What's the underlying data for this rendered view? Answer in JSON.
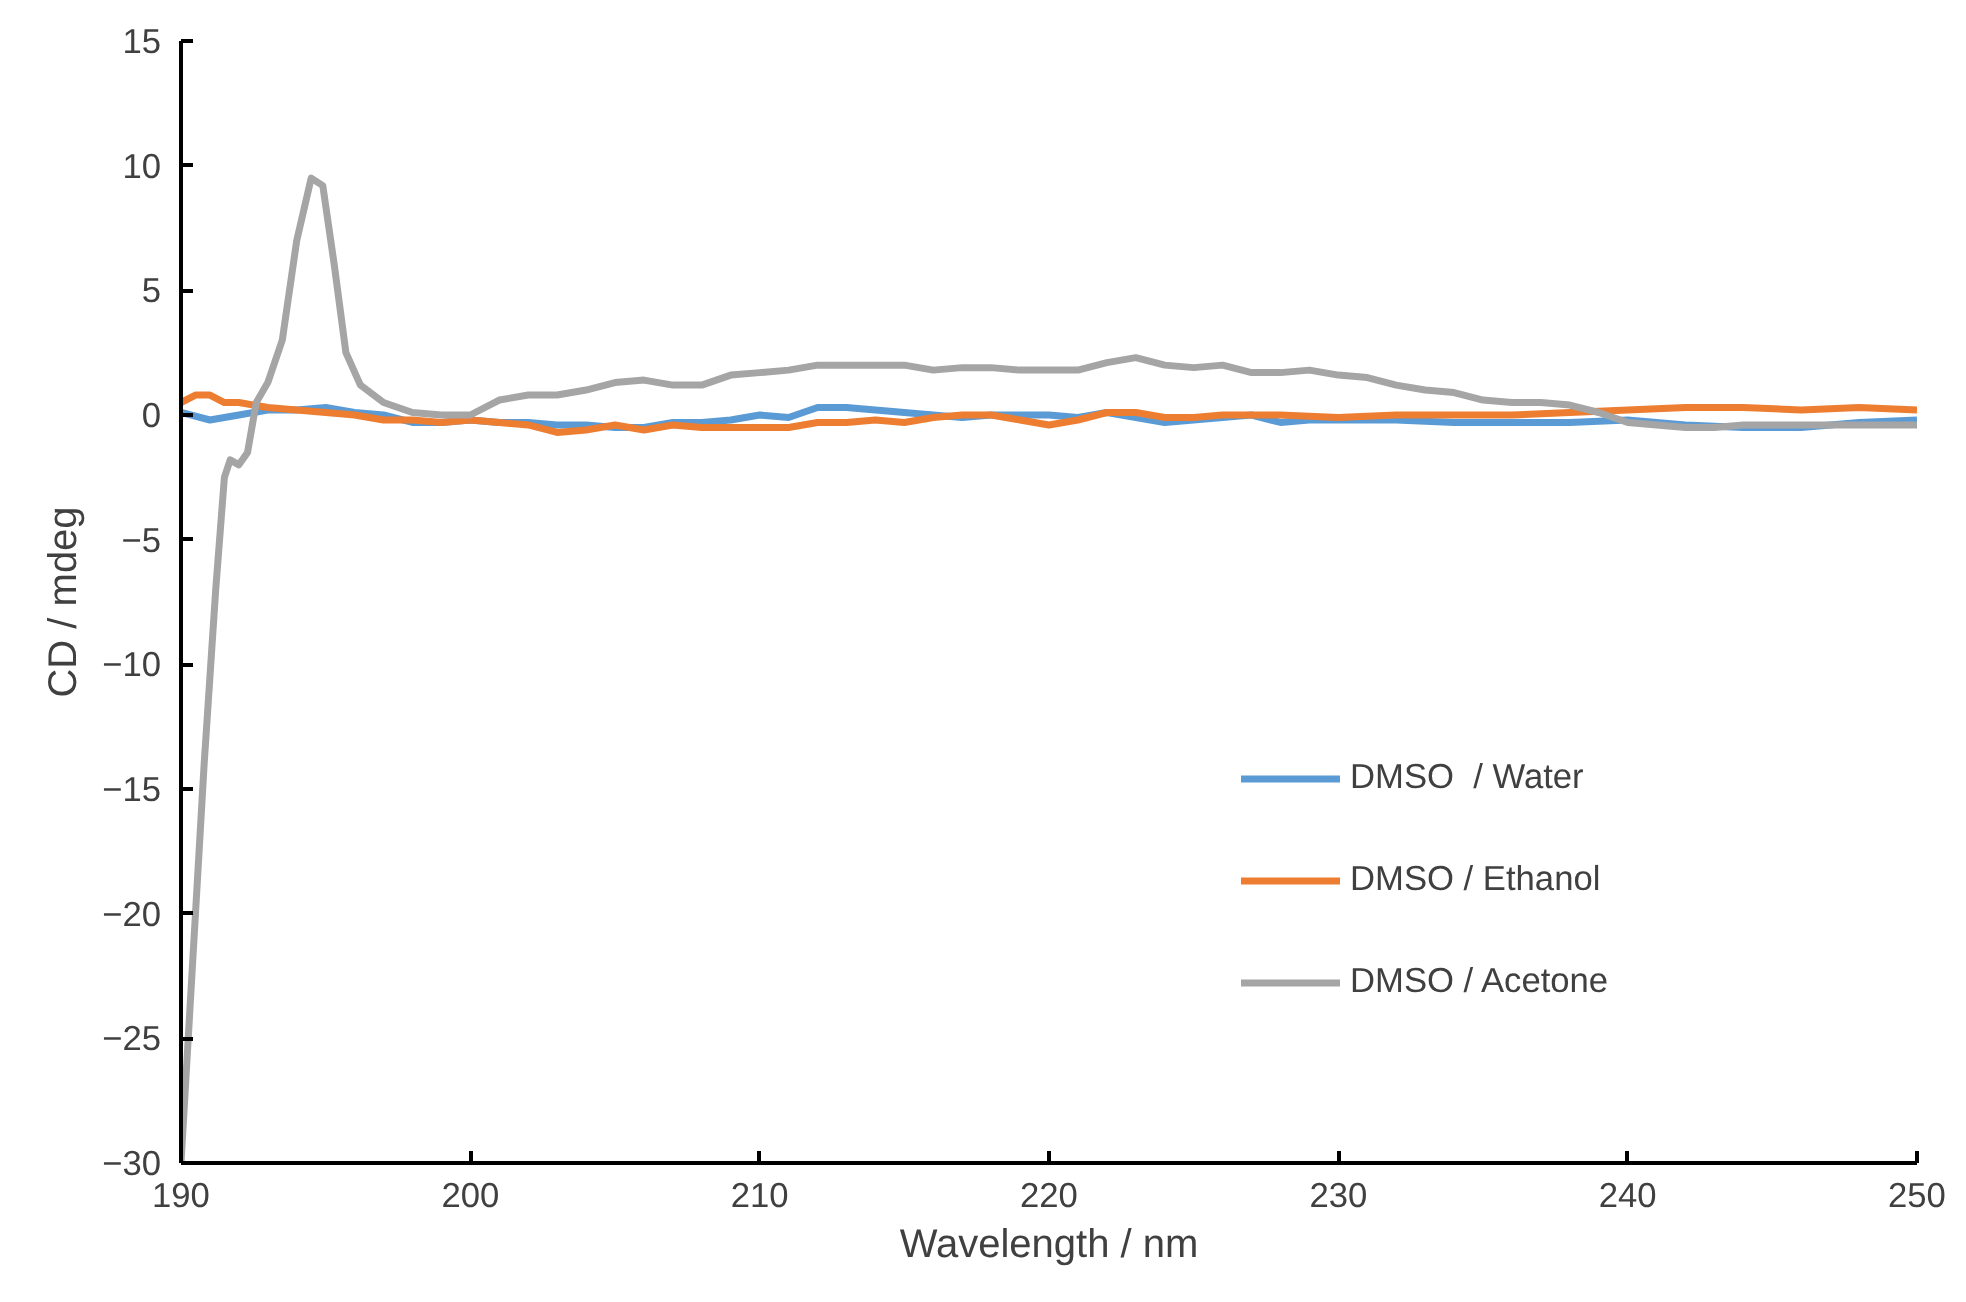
{
  "chart_data": {
    "type": "line",
    "xlabel": "Wavelength / nm",
    "ylabel": "CD / mdeg",
    "xlim": [
      190,
      250
    ],
    "ylim": [
      -30,
      15
    ],
    "xticks": [
      190,
      200,
      210,
      220,
      230,
      240,
      250
    ],
    "yticks": [
      -30,
      -25,
      -20,
      -15,
      -10,
      -5,
      0,
      5,
      10,
      15
    ],
    "grid": false,
    "legend": "right",
    "marker": "none",
    "line_style": "solid",
    "series": [
      {
        "name": "DMSO  / Water",
        "color": "#5b9bd5",
        "x": [
          190,
          191,
          192,
          193,
          194,
          195,
          196,
          197,
          198,
          199,
          200,
          201,
          202,
          203,
          204,
          205,
          206,
          207,
          208,
          209,
          210,
          211,
          212,
          213,
          214,
          215,
          216,
          217,
          218,
          219,
          220,
          221,
          222,
          223,
          224,
          225,
          226,
          227,
          228,
          229,
          230,
          232,
          234,
          236,
          238,
          240,
          242,
          244,
          246,
          248,
          250
        ],
        "values": [
          0.1,
          -0.2,
          0.0,
          0.2,
          0.2,
          0.3,
          0.1,
          0.0,
          -0.3,
          -0.3,
          -0.2,
          -0.3,
          -0.3,
          -0.4,
          -0.4,
          -0.5,
          -0.5,
          -0.3,
          -0.3,
          -0.2,
          0.0,
          -0.1,
          0.3,
          0.3,
          0.2,
          0.1,
          0.0,
          -0.1,
          0.0,
          0.0,
          0.0,
          -0.1,
          0.1,
          -0.1,
          -0.3,
          -0.2,
          -0.1,
          0.0,
          -0.3,
          -0.2,
          -0.2,
          -0.2,
          -0.3,
          -0.3,
          -0.3,
          -0.2,
          -0.4,
          -0.5,
          -0.5,
          -0.3,
          -0.2
        ]
      },
      {
        "name": "DMSO / Ethanol",
        "color": "#ed7d31",
        "x": [
          190,
          190.5,
          191,
          191.5,
          192,
          193,
          194,
          195,
          196,
          197,
          198,
          199,
          200,
          201,
          202,
          203,
          204,
          205,
          206,
          207,
          208,
          209,
          210,
          211,
          212,
          213,
          214,
          215,
          216,
          217,
          218,
          219,
          220,
          221,
          222,
          223,
          224,
          225,
          226,
          228,
          230,
          232,
          234,
          236,
          238,
          240,
          242,
          244,
          246,
          248,
          250
        ],
        "values": [
          0.5,
          0.8,
          0.8,
          0.5,
          0.5,
          0.3,
          0.2,
          0.1,
          0.0,
          -0.2,
          -0.2,
          -0.3,
          -0.2,
          -0.3,
          -0.4,
          -0.7,
          -0.6,
          -0.4,
          -0.6,
          -0.4,
          -0.5,
          -0.5,
          -0.5,
          -0.5,
          -0.3,
          -0.3,
          -0.2,
          -0.3,
          -0.1,
          0.0,
          0.0,
          -0.2,
          -0.4,
          -0.2,
          0.1,
          0.1,
          -0.1,
          -0.1,
          0.0,
          0.0,
          -0.1,
          0.0,
          0.0,
          0.0,
          0.1,
          0.2,
          0.3,
          0.3,
          0.2,
          0.3,
          0.2
        ]
      },
      {
        "name": "DMSO / Acetone",
        "color": "#a5a5a5",
        "x": [
          190,
          190.4,
          190.8,
          191.2,
          191.5,
          191.7,
          192,
          192.3,
          192.6,
          193,
          193.5,
          194,
          194.5,
          194.9,
          195.3,
          195.7,
          196.2,
          197,
          198,
          199,
          200,
          201,
          202,
          203,
          204,
          205,
          206,
          207,
          208,
          209,
          210,
          211,
          212,
          213,
          214,
          215,
          216,
          217,
          218,
          219,
          220,
          221,
          222,
          223,
          224,
          225,
          226,
          227,
          228,
          229,
          230,
          231,
          232,
          233,
          234,
          235,
          236,
          237,
          238,
          239,
          240,
          241,
          242,
          243,
          244,
          246,
          248,
          250
        ],
        "values": [
          -30,
          -22,
          -14,
          -7,
          -2.5,
          -1.8,
          -2.0,
          -1.5,
          0.5,
          1.3,
          3,
          7,
          9.5,
          9.2,
          6,
          2.5,
          1.2,
          0.5,
          0.1,
          0.0,
          0.0,
          0.6,
          0.8,
          0.8,
          1.0,
          1.3,
          1.4,
          1.2,
          1.2,
          1.6,
          1.7,
          1.8,
          2.0,
          2.0,
          2.0,
          2.0,
          1.8,
          1.9,
          1.9,
          1.8,
          1.8,
          1.8,
          2.1,
          2.3,
          2.0,
          1.9,
          2.0,
          1.7,
          1.7,
          1.8,
          1.6,
          1.5,
          1.2,
          1.0,
          0.9,
          0.6,
          0.5,
          0.5,
          0.4,
          0.1,
          -0.3,
          -0.4,
          -0.5,
          -0.5,
          -0.4,
          -0.4,
          -0.4,
          -0.4
        ]
      }
    ]
  }
}
